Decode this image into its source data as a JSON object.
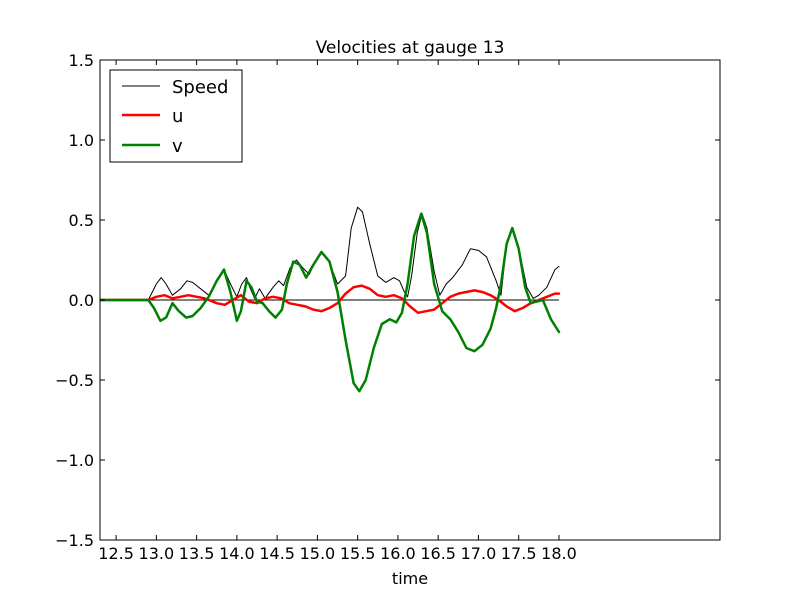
{
  "chart_data": {
    "type": "line",
    "title": "Velocities at gauge 13",
    "xlabel": "time",
    "ylabel": "",
    "xlim": [
      12.3,
      20.0
    ],
    "ylim": [
      -1.5,
      1.5
    ],
    "xticks": [
      12.5,
      13.0,
      13.5,
      14.0,
      14.5,
      15.0,
      15.5,
      16.0,
      16.5,
      17.0,
      17.5,
      18.0
    ],
    "xtick_labels": [
      "12.5",
      "13.0",
      "13.5",
      "14.0",
      "14.5",
      "15.0",
      "15.5",
      "16.0",
      "16.5",
      "17.0",
      "17.5",
      "18.0"
    ],
    "yticks": [
      -1.5,
      -1.0,
      -0.5,
      0.0,
      0.5,
      1.0,
      1.5
    ],
    "ytick_labels": [
      "−1.5",
      "−1.0",
      "−0.5",
      "0.0",
      "0.5",
      "1.0",
      "1.5"
    ],
    "grid": false,
    "legend_position": "top-left",
    "zero_line": true,
    "series": [
      {
        "name": "Speed",
        "color": "#000000",
        "points": [
          [
            12.3,
            0
          ],
          [
            12.9,
            0
          ],
          [
            13.0,
            0.1
          ],
          [
            13.06,
            0.14
          ],
          [
            13.12,
            0.1
          ],
          [
            13.2,
            0.03
          ],
          [
            13.3,
            0.07
          ],
          [
            13.38,
            0.12
          ],
          [
            13.45,
            0.11
          ],
          [
            13.55,
            0.07
          ],
          [
            13.65,
            0.03
          ],
          [
            13.75,
            0.12
          ],
          [
            13.84,
            0.19
          ],
          [
            13.92,
            0.1
          ],
          [
            14.0,
            0.02
          ],
          [
            14.06,
            0.1
          ],
          [
            14.12,
            0.14
          ],
          [
            14.16,
            0.08
          ],
          [
            14.22,
            0.01
          ],
          [
            14.28,
            0.07
          ],
          [
            14.35,
            0.01
          ],
          [
            14.45,
            0.08
          ],
          [
            14.52,
            0.12
          ],
          [
            14.58,
            0.09
          ],
          [
            14.66,
            0.2
          ],
          [
            14.74,
            0.25
          ],
          [
            14.82,
            0.2
          ],
          [
            14.9,
            0.16
          ],
          [
            14.98,
            0.25
          ],
          [
            15.06,
            0.3
          ],
          [
            15.14,
            0.25
          ],
          [
            15.25,
            0.1
          ],
          [
            15.35,
            0.15
          ],
          [
            15.42,
            0.45
          ],
          [
            15.5,
            0.58
          ],
          [
            15.56,
            0.55
          ],
          [
            15.65,
            0.35
          ],
          [
            15.75,
            0.15
          ],
          [
            15.85,
            0.11
          ],
          [
            15.95,
            0.14
          ],
          [
            16.02,
            0.12
          ],
          [
            16.08,
            0.05
          ],
          [
            16.12,
            0.02
          ],
          [
            16.17,
            0.15
          ],
          [
            16.24,
            0.42
          ],
          [
            16.3,
            0.54
          ],
          [
            16.36,
            0.45
          ],
          [
            16.45,
            0.18
          ],
          [
            16.52,
            0.03
          ],
          [
            16.6,
            0.1
          ],
          [
            16.68,
            0.14
          ],
          [
            16.8,
            0.22
          ],
          [
            16.9,
            0.32
          ],
          [
            17.0,
            0.31
          ],
          [
            17.1,
            0.27
          ],
          [
            17.22,
            0.12
          ],
          [
            17.28,
            0.03
          ],
          [
            17.35,
            0.35
          ],
          [
            17.42,
            0.45
          ],
          [
            17.5,
            0.33
          ],
          [
            17.6,
            0.08
          ],
          [
            17.68,
            0.01
          ],
          [
            17.75,
            0.03
          ],
          [
            17.85,
            0.08
          ],
          [
            17.95,
            0.19
          ],
          [
            18.0,
            0.21
          ]
        ]
      },
      {
        "name": "u",
        "color": "#ff0000",
        "points": [
          [
            12.3,
            0
          ],
          [
            12.9,
            0
          ],
          [
            13.0,
            0.02
          ],
          [
            13.1,
            0.03
          ],
          [
            13.2,
            0.01
          ],
          [
            13.3,
            0.02
          ],
          [
            13.4,
            0.03
          ],
          [
            13.5,
            0.02
          ],
          [
            13.6,
            0.01
          ],
          [
            13.75,
            -0.02
          ],
          [
            13.85,
            -0.03
          ],
          [
            13.95,
            0.0
          ],
          [
            14.05,
            0.03
          ],
          [
            14.15,
            -0.01
          ],
          [
            14.25,
            -0.02
          ],
          [
            14.35,
            0.01
          ],
          [
            14.45,
            0.02
          ],
          [
            14.55,
            0.01
          ],
          [
            14.65,
            -0.02
          ],
          [
            14.75,
            -0.03
          ],
          [
            14.85,
            -0.04
          ],
          [
            14.95,
            -0.06
          ],
          [
            15.05,
            -0.07
          ],
          [
            15.15,
            -0.05
          ],
          [
            15.25,
            -0.02
          ],
          [
            15.35,
            0.04
          ],
          [
            15.45,
            0.08
          ],
          [
            15.55,
            0.09
          ],
          [
            15.65,
            0.07
          ],
          [
            15.75,
            0.03
          ],
          [
            15.85,
            0.02
          ],
          [
            15.95,
            0.03
          ],
          [
            16.05,
            0.01
          ],
          [
            16.15,
            -0.04
          ],
          [
            16.25,
            -0.08
          ],
          [
            16.35,
            -0.07
          ],
          [
            16.45,
            -0.06
          ],
          [
            16.55,
            -0.02
          ],
          [
            16.65,
            0.02
          ],
          [
            16.75,
            0.04
          ],
          [
            16.85,
            0.05
          ],
          [
            16.95,
            0.06
          ],
          [
            17.05,
            0.05
          ],
          [
            17.15,
            0.03
          ],
          [
            17.25,
            0.0
          ],
          [
            17.35,
            -0.04
          ],
          [
            17.45,
            -0.07
          ],
          [
            17.55,
            -0.05
          ],
          [
            17.65,
            -0.02
          ],
          [
            17.75,
            0.0
          ],
          [
            17.85,
            0.02
          ],
          [
            17.95,
            0.04
          ],
          [
            18.0,
            0.04
          ]
        ]
      },
      {
        "name": "v",
        "color": "#008000",
        "points": [
          [
            12.3,
            0
          ],
          [
            12.9,
            0
          ],
          [
            12.97,
            -0.05
          ],
          [
            13.05,
            -0.13
          ],
          [
            13.12,
            -0.11
          ],
          [
            13.2,
            -0.02
          ],
          [
            13.28,
            -0.07
          ],
          [
            13.37,
            -0.11
          ],
          [
            13.45,
            -0.1
          ],
          [
            13.55,
            -0.05
          ],
          [
            13.65,
            0.02
          ],
          [
            13.75,
            0.12
          ],
          [
            13.84,
            0.19
          ],
          [
            13.92,
            0.05
          ],
          [
            14.0,
            -0.13
          ],
          [
            14.05,
            -0.07
          ],
          [
            14.12,
            0.12
          ],
          [
            14.18,
            0.08
          ],
          [
            14.25,
            -0.01
          ],
          [
            14.32,
            -0.02
          ],
          [
            14.4,
            -0.07
          ],
          [
            14.48,
            -0.11
          ],
          [
            14.56,
            -0.06
          ],
          [
            14.62,
            0.1
          ],
          [
            14.7,
            0.24
          ],
          [
            14.78,
            0.22
          ],
          [
            14.86,
            0.14
          ],
          [
            14.95,
            0.22
          ],
          [
            15.05,
            0.3
          ],
          [
            15.15,
            0.24
          ],
          [
            15.25,
            0.05
          ],
          [
            15.35,
            -0.25
          ],
          [
            15.45,
            -0.52
          ],
          [
            15.52,
            -0.57
          ],
          [
            15.6,
            -0.5
          ],
          [
            15.7,
            -0.3
          ],
          [
            15.8,
            -0.15
          ],
          [
            15.9,
            -0.12
          ],
          [
            15.98,
            -0.14
          ],
          [
            16.05,
            -0.08
          ],
          [
            16.12,
            0.1
          ],
          [
            16.2,
            0.4
          ],
          [
            16.29,
            0.54
          ],
          [
            16.36,
            0.42
          ],
          [
            16.45,
            0.1
          ],
          [
            16.55,
            -0.07
          ],
          [
            16.65,
            -0.12
          ],
          [
            16.75,
            -0.2
          ],
          [
            16.85,
            -0.3
          ],
          [
            16.95,
            -0.32
          ],
          [
            17.05,
            -0.28
          ],
          [
            17.15,
            -0.18
          ],
          [
            17.22,
            -0.05
          ],
          [
            17.28,
            0.1
          ],
          [
            17.35,
            0.35
          ],
          [
            17.42,
            0.45
          ],
          [
            17.5,
            0.32
          ],
          [
            17.58,
            0.08
          ],
          [
            17.65,
            -0.02
          ],
          [
            17.72,
            -0.01
          ],
          [
            17.8,
            0.0
          ],
          [
            17.9,
            -0.12
          ],
          [
            18.0,
            -0.2
          ]
        ]
      }
    ]
  }
}
